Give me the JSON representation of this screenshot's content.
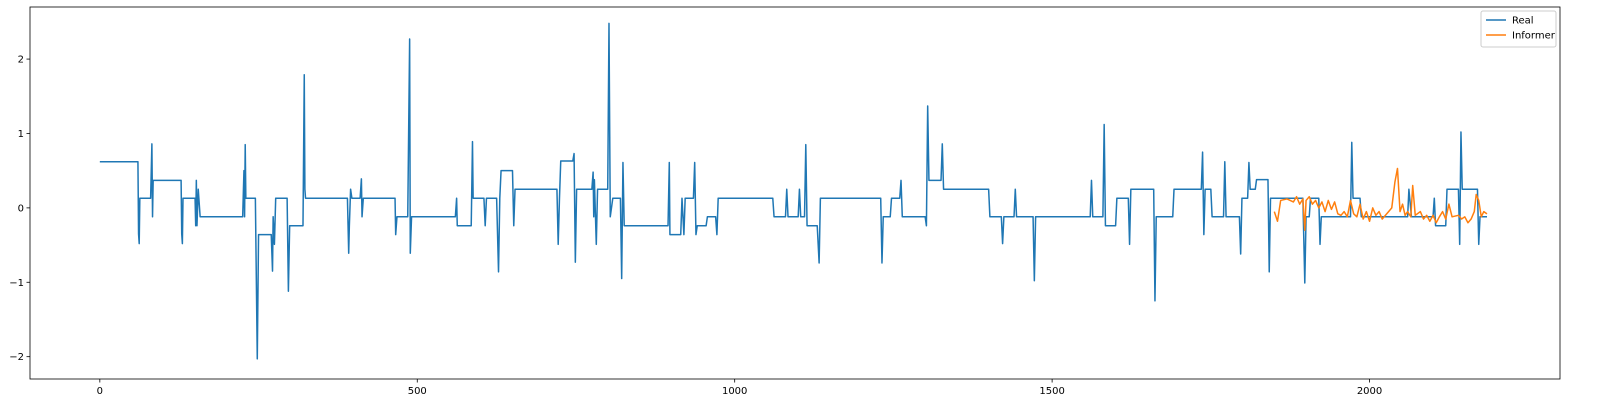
{
  "chart_data": {
    "type": "line",
    "title": "",
    "xlabel": "",
    "ylabel": "",
    "xlim": [
      -110,
      2300
    ],
    "ylim": [
      -2.3,
      2.7
    ],
    "x_ticks": [
      0,
      500,
      1000,
      1500,
      2000
    ],
    "x_tick_labels": [
      "0",
      "500",
      "1000",
      "1500",
      "2000"
    ],
    "y_ticks": [
      -2,
      -1,
      0,
      1,
      2
    ],
    "y_tick_labels": [
      "−2",
      "−1",
      "0",
      "1",
      "2"
    ],
    "grid": false,
    "legend": {
      "position": "top-right"
    },
    "series": [
      {
        "name": "Real",
        "color": "#1f77b4",
        "points": [
          [
            0,
            0.62
          ],
          [
            60,
            0.62
          ],
          [
            61,
            -0.35
          ],
          [
            62,
            -0.48
          ],
          [
            63,
            0.13
          ],
          [
            80,
            0.13
          ],
          [
            82,
            0.86
          ],
          [
            83,
            -0.12
          ],
          [
            84,
            0.37
          ],
          [
            128,
            0.37
          ],
          [
            129,
            -0.35
          ],
          [
            130,
            -0.48
          ],
          [
            131,
            0.13
          ],
          [
            150,
            0.13
          ],
          [
            151,
            -0.24
          ],
          [
            152,
            0.37
          ],
          [
            153,
            -0.24
          ],
          [
            155,
            0.25
          ],
          [
            158,
            -0.12
          ],
          [
            225,
            -0.12
          ],
          [
            227,
            0.5
          ],
          [
            228,
            -0.12
          ],
          [
            229,
            0.85
          ],
          [
            230,
            0.13
          ],
          [
            245,
            0.13
          ],
          [
            248,
            -2.03
          ],
          [
            250,
            -0.36
          ],
          [
            270,
            -0.36
          ],
          [
            272,
            -0.85
          ],
          [
            273,
            -0.12
          ],
          [
            275,
            -0.49
          ],
          [
            277,
            0.13
          ],
          [
            295,
            0.13
          ],
          [
            297,
            -1.12
          ],
          [
            299,
            -0.24
          ],
          [
            320,
            -0.24
          ],
          [
            322,
            1.79
          ],
          [
            323,
            0.25
          ],
          [
            324,
            0.13
          ],
          [
            390,
            0.13
          ],
          [
            392,
            -0.61
          ],
          [
            393,
            -0.25
          ],
          [
            395,
            0.25
          ],
          [
            397,
            0.13
          ],
          [
            410,
            0.13
          ],
          [
            412,
            0.39
          ],
          [
            413,
            -0.12
          ],
          [
            415,
            0.13
          ],
          [
            465,
            0.13
          ],
          [
            466,
            -0.36
          ],
          [
            468,
            -0.12
          ],
          [
            485,
            -0.12
          ],
          [
            488,
            2.27
          ],
          [
            489,
            -0.61
          ],
          [
            491,
            -0.12
          ],
          [
            560,
            -0.12
          ],
          [
            562,
            0.13
          ],
          [
            563,
            -0.24
          ],
          [
            585,
            -0.24
          ],
          [
            587,
            0.89
          ],
          [
            588,
            0.13
          ],
          [
            605,
            0.13
          ],
          [
            607,
            -0.24
          ],
          [
            609,
            0.13
          ],
          [
            625,
            0.13
          ],
          [
            628,
            -0.86
          ],
          [
            630,
            0.13
          ],
          [
            632,
            0.5
          ],
          [
            650,
            0.5
          ],
          [
            652,
            -0.24
          ],
          [
            654,
            0.25
          ],
          [
            720,
            0.25
          ],
          [
            722,
            -0.49
          ],
          [
            724,
            0.13
          ],
          [
            726,
            0.63
          ],
          [
            745,
            0.63
          ],
          [
            747,
            0.73
          ],
          [
            749,
            -0.73
          ],
          [
            751,
            0.25
          ],
          [
            775,
            0.25
          ],
          [
            777,
            0.48
          ],
          [
            778,
            -0.12
          ],
          [
            779,
            0.38
          ],
          [
            782,
            -0.49
          ],
          [
            784,
            0.25
          ],
          [
            800,
            0.25
          ],
          [
            802,
            2.48
          ],
          [
            804,
            -0.12
          ],
          [
            808,
            0.13
          ],
          [
            820,
            0.13
          ],
          [
            822,
            -0.95
          ],
          [
            824,
            0.61
          ],
          [
            826,
            -0.24
          ],
          [
            895,
            -0.24
          ],
          [
            897,
            0.61
          ],
          [
            898,
            -0.36
          ],
          [
            915,
            -0.36
          ],
          [
            917,
            0.13
          ],
          [
            920,
            -0.36
          ],
          [
            922,
            0.13
          ],
          [
            935,
            0.13
          ],
          [
            937,
            0.61
          ],
          [
            939,
            -0.36
          ],
          [
            941,
            -0.24
          ],
          [
            955,
            -0.24
          ],
          [
            957,
            -0.12
          ],
          [
            970,
            -0.12
          ],
          [
            972,
            -0.36
          ],
          [
            974,
            0.13
          ],
          [
            1060,
            0.13
          ],
          [
            1062,
            -0.12
          ],
          [
            1080,
            -0.12
          ],
          [
            1082,
            0.25
          ],
          [
            1084,
            -0.12
          ],
          [
            1100,
            -0.12
          ],
          [
            1102,
            0.25
          ],
          [
            1104,
            -0.12
          ],
          [
            1110,
            -0.12
          ],
          [
            1112,
            0.85
          ],
          [
            1114,
            -0.24
          ],
          [
            1130,
            -0.24
          ],
          [
            1133,
            -0.74
          ],
          [
            1135,
            0.13
          ],
          [
            1230,
            0.13
          ],
          [
            1232,
            -0.74
          ],
          [
            1234,
            -0.12
          ],
          [
            1245,
            -0.12
          ],
          [
            1247,
            0.13
          ],
          [
            1260,
            0.13
          ],
          [
            1262,
            0.37
          ],
          [
            1264,
            -0.12
          ],
          [
            1300,
            -0.12
          ],
          [
            1302,
            -0.24
          ],
          [
            1304,
            1.37
          ],
          [
            1306,
            0.37
          ],
          [
            1325,
            0.37
          ],
          [
            1327,
            0.86
          ],
          [
            1329,
            0.25
          ],
          [
            1400,
            0.25
          ],
          [
            1402,
            -0.12
          ],
          [
            1420,
            -0.12
          ],
          [
            1422,
            -0.48
          ],
          [
            1424,
            -0.12
          ],
          [
            1440,
            -0.12
          ],
          [
            1442,
            0.25
          ],
          [
            1444,
            -0.12
          ],
          [
            1470,
            -0.12
          ],
          [
            1472,
            -0.98
          ],
          [
            1474,
            -0.12
          ],
          [
            1560,
            -0.12
          ],
          [
            1562,
            0.37
          ],
          [
            1564,
            -0.12
          ],
          [
            1580,
            -0.12
          ],
          [
            1582,
            1.12
          ],
          [
            1584,
            -0.24
          ],
          [
            1600,
            -0.24
          ],
          [
            1602,
            0.13
          ],
          [
            1620,
            0.13
          ],
          [
            1622,
            -0.49
          ],
          [
            1624,
            0.25
          ],
          [
            1660,
            0.25
          ],
          [
            1662,
            -1.25
          ],
          [
            1664,
            -0.12
          ],
          [
            1690,
            -0.12
          ],
          [
            1692,
            0.25
          ],
          [
            1735,
            0.25
          ],
          [
            1737,
            0.75
          ],
          [
            1739,
            -0.36
          ],
          [
            1741,
            0.25
          ],
          [
            1750,
            0.25
          ],
          [
            1752,
            -0.12
          ],
          [
            1770,
            -0.12
          ],
          [
            1772,
            0.62
          ],
          [
            1774,
            -0.12
          ],
          [
            1795,
            -0.12
          ],
          [
            1797,
            -0.62
          ],
          [
            1799,
            0.13
          ],
          [
            1808,
            0.13
          ],
          [
            1810,
            0.61
          ],
          [
            1812,
            0.25
          ],
          [
            1820,
            0.25
          ],
          [
            1822,
            0.38
          ],
          [
            1840,
            0.38
          ],
          [
            1842,
            -0.86
          ],
          [
            1844,
            0.13
          ],
          [
            1895,
            0.13
          ],
          [
            1898,
            -1.01
          ],
          [
            1900,
            -0.12
          ],
          [
            1905,
            -0.12
          ],
          [
            1907,
            0.13
          ],
          [
            1920,
            0.13
          ],
          [
            1922,
            -0.49
          ],
          [
            1924,
            -0.12
          ],
          [
            1970,
            -0.12
          ],
          [
            1972,
            0.88
          ],
          [
            1974,
            0.13
          ],
          [
            1985,
            0.13
          ],
          [
            1987,
            -0.12
          ],
          [
            2060,
            -0.12
          ],
          [
            2062,
            0.25
          ],
          [
            2066,
            -0.12
          ],
          [
            2100,
            -0.12
          ],
          [
            2102,
            0.13
          ],
          [
            2104,
            -0.24
          ],
          [
            2120,
            -0.24
          ],
          [
            2122,
            0.25
          ],
          [
            2140,
            0.25
          ],
          [
            2142,
            -0.49
          ],
          [
            2144,
            1.02
          ],
          [
            2146,
            0.25
          ],
          [
            2170,
            0.25
          ],
          [
            2172,
            -0.49
          ],
          [
            2174,
            -0.12
          ],
          [
            2185,
            -0.12
          ]
        ]
      },
      {
        "name": "Informer",
        "color": "#ff7f0e",
        "points": [
          [
            1850,
            -0.05
          ],
          [
            1855,
            -0.18
          ],
          [
            1860,
            0.1
          ],
          [
            1870,
            0.12
          ],
          [
            1880,
            0.08
          ],
          [
            1885,
            0.15
          ],
          [
            1890,
            0.05
          ],
          [
            1895,
            0.12
          ],
          [
            1898,
            -0.3
          ],
          [
            1900,
            0.1
          ],
          [
            1905,
            0.15
          ],
          [
            1910,
            0.05
          ],
          [
            1915,
            0.1
          ],
          [
            1920,
            0.0
          ],
          [
            1925,
            0.08
          ],
          [
            1930,
            -0.05
          ],
          [
            1935,
            0.1
          ],
          [
            1940,
            -0.02
          ],
          [
            1945,
            0.08
          ],
          [
            1950,
            -0.08
          ],
          [
            1955,
            -0.1
          ],
          [
            1960,
            -0.05
          ],
          [
            1965,
            -0.12
          ],
          [
            1970,
            0.1
          ],
          [
            1975,
            -0.08
          ],
          [
            1980,
            -0.12
          ],
          [
            1985,
            0.05
          ],
          [
            1990,
            -0.15
          ],
          [
            1995,
            -0.05
          ],
          [
            2000,
            -0.18
          ],
          [
            2005,
            0.0
          ],
          [
            2010,
            -0.1
          ],
          [
            2015,
            -0.05
          ],
          [
            2020,
            -0.15
          ],
          [
            2030,
            -0.05
          ],
          [
            2035,
            0.0
          ],
          [
            2040,
            0.35
          ],
          [
            2044,
            0.53
          ],
          [
            2048,
            -0.05
          ],
          [
            2052,
            0.05
          ],
          [
            2056,
            -0.1
          ],
          [
            2060,
            -0.05
          ],
          [
            2065,
            -0.12
          ],
          [
            2068,
            0.3
          ],
          [
            2072,
            -0.1
          ],
          [
            2080,
            -0.05
          ],
          [
            2085,
            -0.15
          ],
          [
            2090,
            -0.1
          ],
          [
            2095,
            -0.18
          ],
          [
            2100,
            -0.1
          ],
          [
            2105,
            -0.2
          ],
          [
            2110,
            -0.12
          ],
          [
            2115,
            -0.05
          ],
          [
            2120,
            -0.15
          ],
          [
            2125,
            0.05
          ],
          [
            2130,
            -0.12
          ],
          [
            2140,
            -0.1
          ],
          [
            2145,
            -0.15
          ],
          [
            2150,
            -0.12
          ],
          [
            2155,
            -0.2
          ],
          [
            2160,
            -0.15
          ],
          [
            2165,
            -0.05
          ],
          [
            2168,
            0.18
          ],
          [
            2172,
            0.1
          ],
          [
            2176,
            -0.12
          ],
          [
            2180,
            -0.05
          ],
          [
            2185,
            -0.08
          ]
        ]
      }
    ]
  }
}
